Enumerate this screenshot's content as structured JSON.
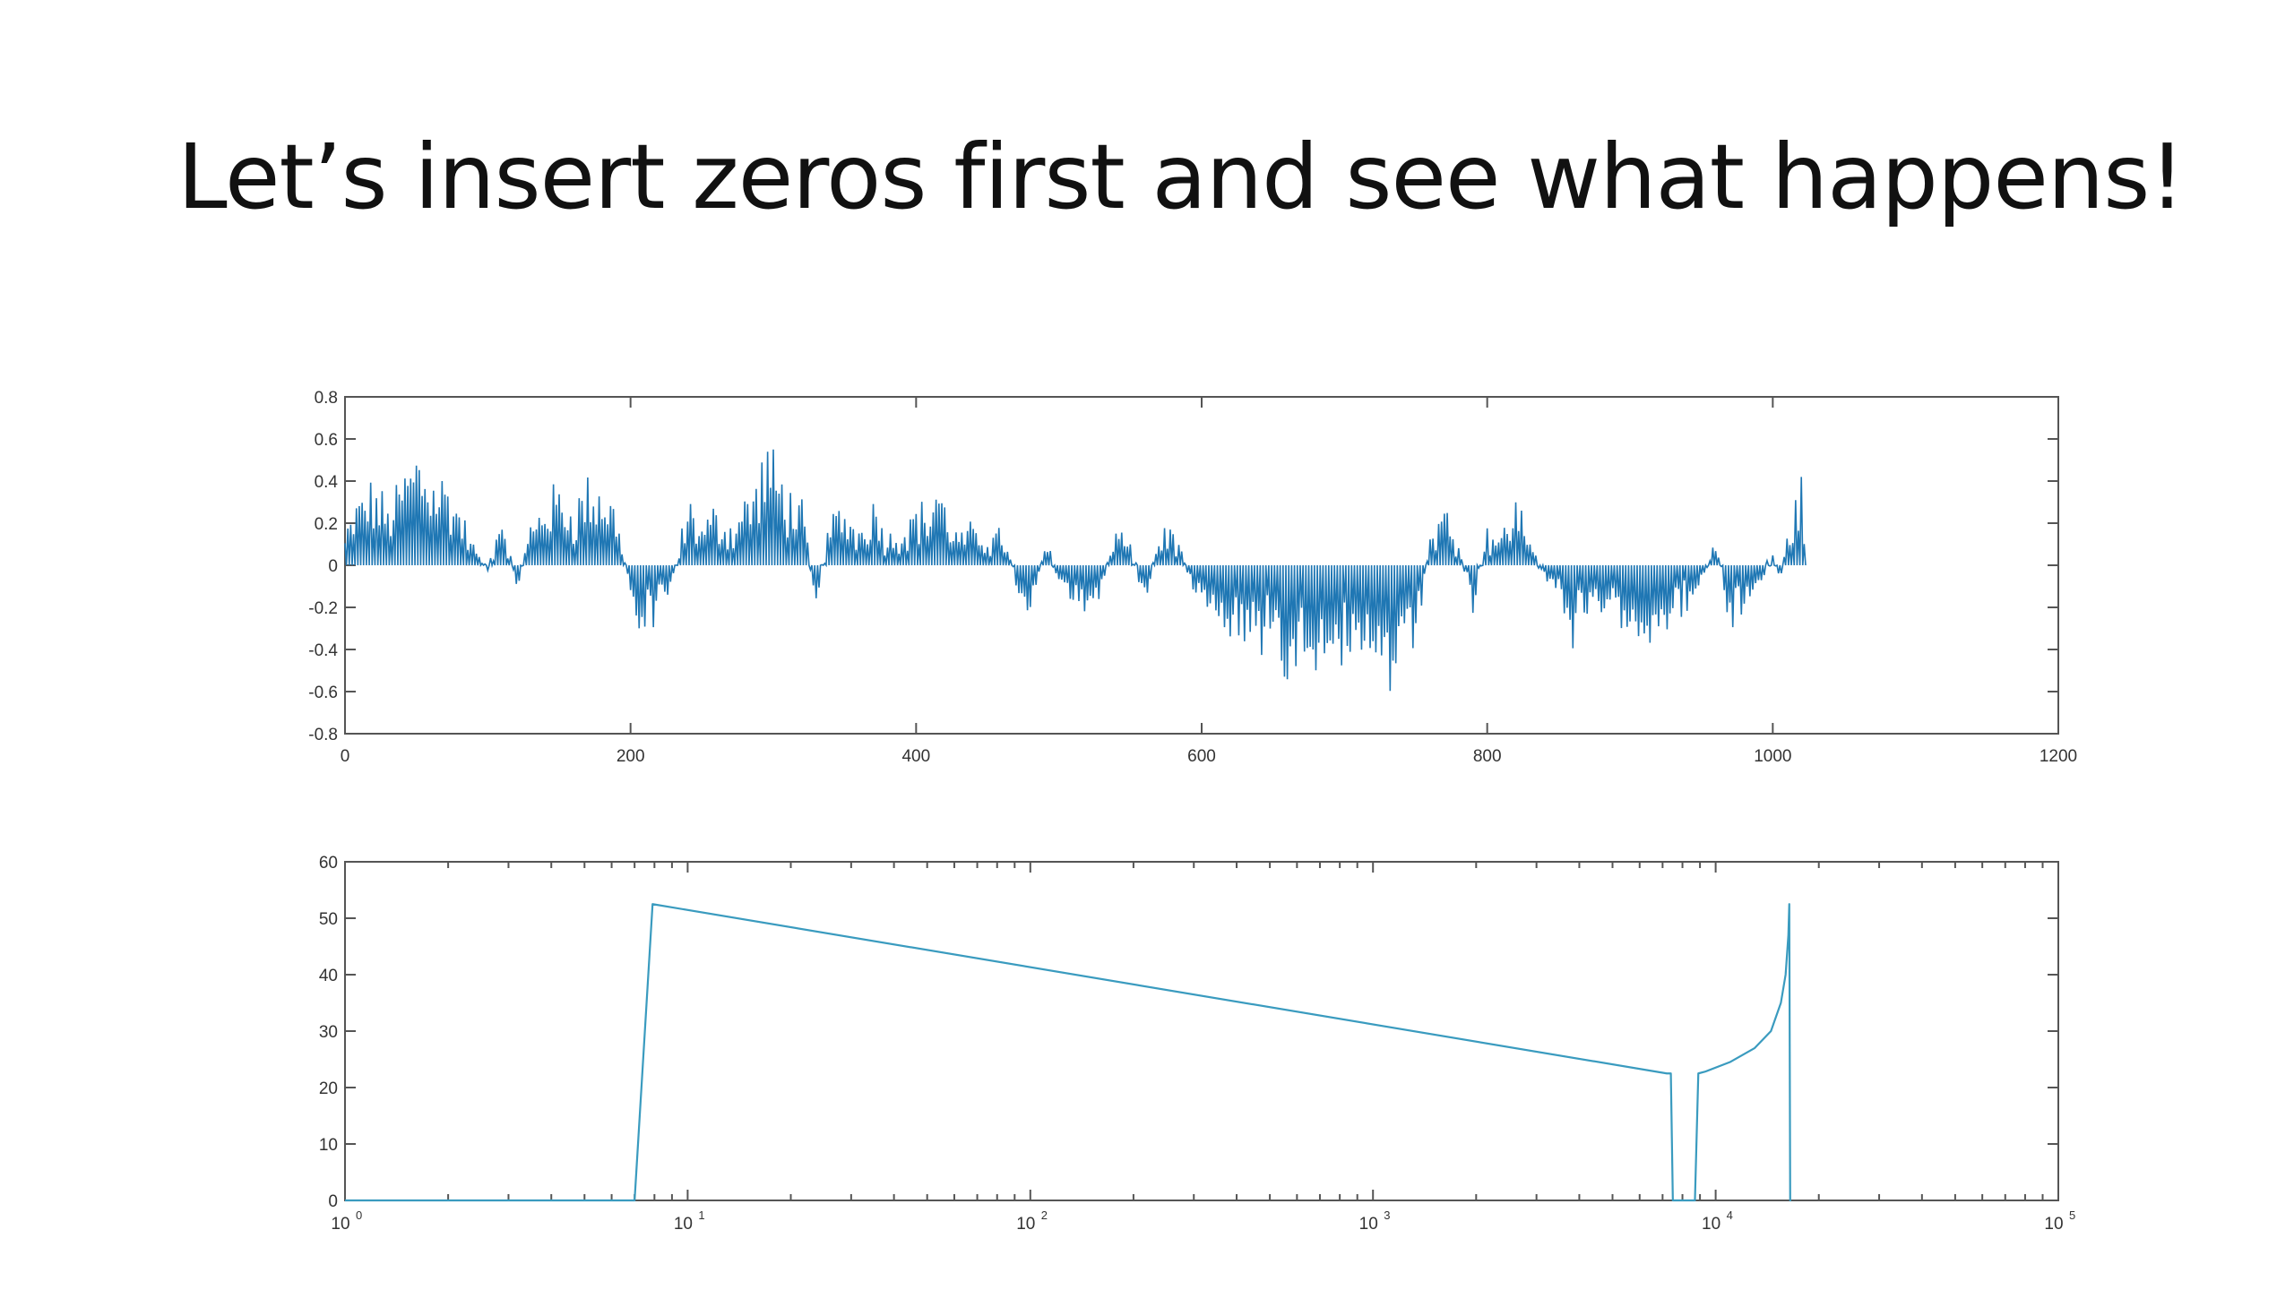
{
  "slide": {
    "title": "Let’s insert zeros first and see what happens!"
  },
  "colors": {
    "series_top": "#1f77b4",
    "series_bottom": "#3a9bbf",
    "axis": "#555555",
    "background": "#ffffff"
  },
  "chart_data": [
    {
      "type": "line",
      "title": "",
      "xlabel": "",
      "ylabel": "",
      "xlim": [
        0,
        1200
      ],
      "ylim": [
        -0.8,
        0.8
      ],
      "xticks": [
        0,
        200,
        400,
        600,
        800,
        1000,
        1200
      ],
      "xtick_labels": [
        "0",
        "200",
        "400",
        "600",
        "800",
        "1000",
        "1200"
      ],
      "yticks": [
        -0.8,
        -0.6,
        -0.4,
        -0.2,
        0,
        0.2,
        0.4,
        0.6,
        0.8
      ],
      "ytick_labels": [
        "-0.8",
        "-0.6",
        "-0.4",
        "-0.2",
        "0",
        "0.2",
        "0.4",
        "0.6",
        "0.8"
      ],
      "grid": false,
      "legend": "none",
      "style": "zero-inserted signal (every other sample is 0)",
      "series": [
        {
          "x_start": 0,
          "x_end": 1023,
          "envelope": [
            [
              0,
              0.15
            ],
            [
              10,
              0.35
            ],
            [
              20,
              0.42
            ],
            [
              30,
              0.3
            ],
            [
              40,
              0.45
            ],
            [
              50,
              0.6
            ],
            [
              60,
              0.5
            ],
            [
              70,
              0.45
            ],
            [
              80,
              0.3
            ],
            [
              90,
              0.1
            ],
            [
              100,
              -0.05
            ],
            [
              110,
              0.3
            ],
            [
              120,
              -0.15
            ],
            [
              130,
              0.2
            ],
            [
              140,
              0.35
            ],
            [
              150,
              0.4
            ],
            [
              160,
              0.3
            ],
            [
              170,
              0.45
            ],
            [
              180,
              0.4
            ],
            [
              190,
              0.3
            ],
            [
              200,
              -0.15
            ],
            [
              205,
              -0.35
            ],
            [
              210,
              -0.3
            ],
            [
              220,
              -0.25
            ],
            [
              230,
              -0.1
            ],
            [
              240,
              0.35
            ],
            [
              250,
              0.2
            ],
            [
              260,
              0.3
            ],
            [
              270,
              0.2
            ],
            [
              280,
              0.35
            ],
            [
              290,
              0.45
            ],
            [
              295,
              0.68
            ],
            [
              300,
              0.55
            ],
            [
              310,
              0.4
            ],
            [
              320,
              0.3
            ],
            [
              330,
              -0.2
            ],
            [
              340,
              0.25
            ],
            [
              350,
              0.3
            ],
            [
              360,
              0.2
            ],
            [
              370,
              0.35
            ],
            [
              380,
              0.15
            ],
            [
              390,
              0.2
            ],
            [
              400,
              0.3
            ],
            [
              410,
              0.3
            ],
            [
              415,
              0.5
            ],
            [
              420,
              0.3
            ],
            [
              430,
              0.15
            ],
            [
              440,
              0.2
            ],
            [
              450,
              0.15
            ],
            [
              460,
              0.2
            ],
            [
              470,
              -0.1
            ],
            [
              480,
              -0.25
            ],
            [
              490,
              0.15
            ],
            [
              500,
              -0.05
            ],
            [
              510,
              -0.3
            ],
            [
              520,
              -0.2
            ],
            [
              530,
              -0.15
            ],
            [
              540,
              0.2
            ],
            [
              550,
              0.1
            ],
            [
              560,
              -0.2
            ],
            [
              570,
              0.15
            ],
            [
              580,
              0.2
            ],
            [
              590,
              -0.05
            ],
            [
              600,
              -0.15
            ],
            [
              610,
              -0.3
            ],
            [
              620,
              -0.35
            ],
            [
              630,
              -0.4
            ],
            [
              640,
              -0.45
            ],
            [
              650,
              -0.3
            ],
            [
              660,
              -0.6
            ],
            [
              670,
              -0.45
            ],
            [
              680,
              -0.5
            ],
            [
              690,
              -0.4
            ],
            [
              700,
              -0.5
            ],
            [
              710,
              -0.65
            ],
            [
              720,
              -0.55
            ],
            [
              730,
              -0.6
            ],
            [
              740,
              -0.72
            ],
            [
              750,
              -0.4
            ],
            [
              760,
              0.15
            ],
            [
              770,
              0.3
            ],
            [
              780,
              0.15
            ],
            [
              790,
              -0.25
            ],
            [
              800,
              0.2
            ],
            [
              810,
              0.15
            ],
            [
              820,
              0.35
            ],
            [
              825,
              0.25
            ],
            [
              830,
              0.15
            ],
            [
              840,
              -0.05
            ],
            [
              850,
              -0.15
            ],
            [
              860,
              -0.4
            ],
            [
              870,
              -0.3
            ],
            [
              880,
              -0.25
            ],
            [
              890,
              -0.35
            ],
            [
              900,
              -0.3
            ],
            [
              910,
              -0.4
            ],
            [
              920,
              -0.3
            ],
            [
              930,
              -0.35
            ],
            [
              940,
              -0.2
            ],
            [
              950,
              -0.15
            ],
            [
              960,
              0.15
            ],
            [
              970,
              -0.35
            ],
            [
              980,
              -0.25
            ],
            [
              990,
              -0.1
            ],
            [
              1000,
              0.05
            ],
            [
              1005,
              -0.1
            ],
            [
              1010,
              0.15
            ],
            [
              1015,
              0.3
            ],
            [
              1020,
              0.45
            ],
            [
              1023,
              0.1
            ]
          ]
        }
      ]
    },
    {
      "type": "line",
      "title": "",
      "xlabel": "",
      "ylabel": "",
      "xscale": "log",
      "xlim": [
        1,
        100000
      ],
      "ylim": [
        0,
        60
      ],
      "xticks": [
        1,
        10,
        100,
        1000,
        10000,
        100000
      ],
      "xtick_labels": [
        "10",
        "10",
        "10",
        "10",
        "10",
        "10"
      ],
      "xtick_exponents": [
        "0",
        "1",
        "2",
        "3",
        "4",
        "5"
      ],
      "yticks": [
        0,
        10,
        20,
        30,
        40,
        50,
        60
      ],
      "ytick_labels": [
        "0",
        "10",
        "20",
        "30",
        "40",
        "50",
        "60"
      ],
      "grid": false,
      "legend": "none",
      "series": [
        {
          "x": [
            1,
            7,
            7.9,
            7200,
            7400,
            7500,
            8700,
            8900,
            9300,
            11000,
            13000,
            14500,
            15500,
            16000,
            16300,
            16400,
            16500,
            16600
          ],
          "y": [
            0,
            0,
            52.5,
            22.5,
            22.5,
            0,
            0,
            22.5,
            22.8,
            24.5,
            27,
            30,
            35,
            40,
            47,
            52.5,
            0,
            0
          ]
        }
      ]
    }
  ]
}
